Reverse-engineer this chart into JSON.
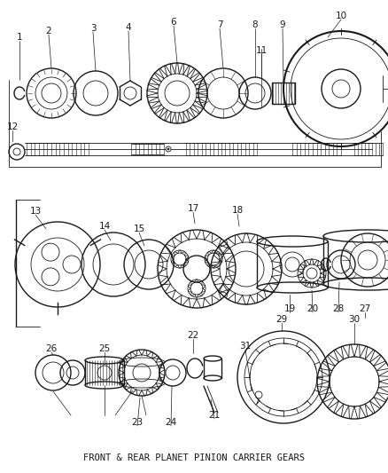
{
  "title": "FRONT & REAR PLANET PINION CARRIER GEARS",
  "bg": "#f5f5f5",
  "lc": "#1a1a1a",
  "fig_w": 4.38,
  "fig_h": 5.33,
  "dpi": 100
}
